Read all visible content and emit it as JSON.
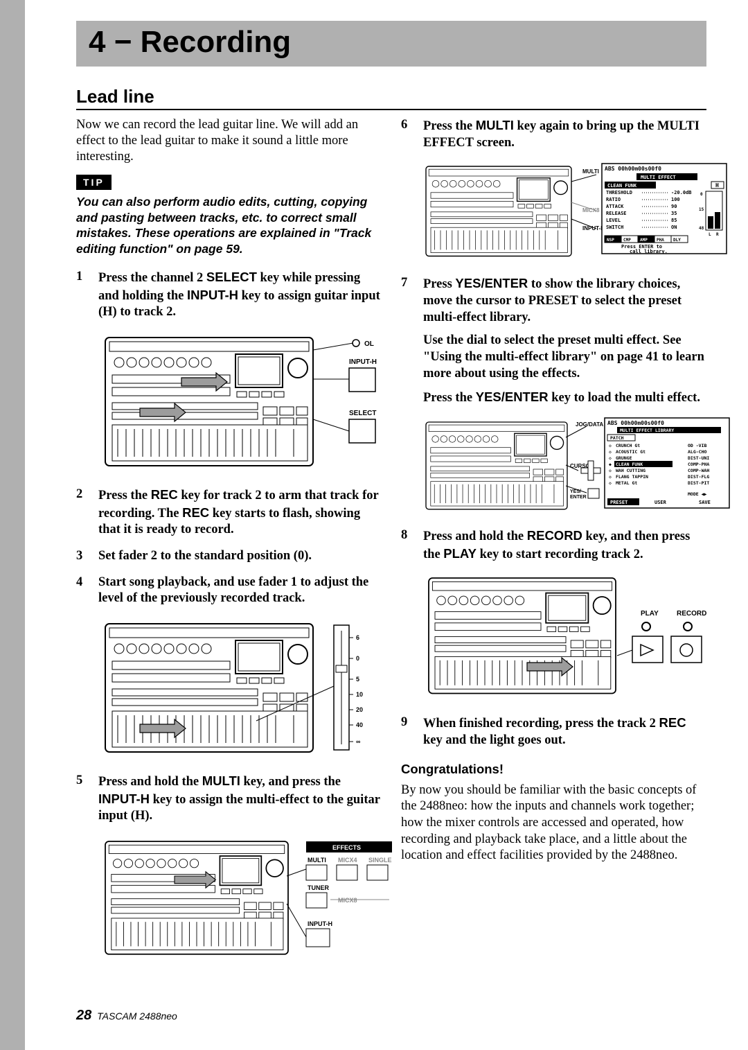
{
  "chapter": {
    "title": "4 − Recording"
  },
  "section": {
    "title": "Lead line"
  },
  "intro": "Now we can record the lead guitar line. We will add an effect to the lead guitar to make it sound a little more interesting.",
  "tip": {
    "label": "TIP",
    "body": "You can also perform audio edits, cutting, copying and pasting between tracks, etc. to correct small mistakes. These operations are explained in \"Track editing function\" on page 59."
  },
  "labels": {
    "ol": "OL",
    "input_h": "INPUT-H",
    "select": "SELECT",
    "effects": "EFFECTS",
    "multi": "MULTI",
    "micx4": "MICX4",
    "single": "SINGLE",
    "tuner": "TUNER",
    "micx8": "MICX8",
    "play": "PLAY",
    "record": "RECORD",
    "jog": "JOG/DATA",
    "cursor": "CURSOR",
    "yes_enter": "YES/\nENTER"
  },
  "fader_ticks": [
    "6",
    "0",
    "5",
    "10",
    "20",
    "40",
    "∞"
  ],
  "lcd1": {
    "timecode": "ABS 00h00m00s00f0",
    "title": "MULTI EFFECT",
    "patch": "CLEAN FUNK",
    "ch": "H",
    "rows": [
      [
        "THRESHOLD",
        "-20.0dB"
      ],
      [
        "RATIO",
        "100"
      ],
      [
        "ATTACK",
        "90"
      ],
      [
        "RELEASE",
        "35"
      ],
      [
        "LEVEL",
        "85"
      ],
      [
        "SWITCH",
        "ON"
      ]
    ],
    "tabs": [
      "NSP",
      "CMP",
      "AMP",
      "PHA",
      "DLY"
    ],
    "footer": "Press ENTER to\ncall library.",
    "meter_ticks": [
      "0",
      "15",
      "48"
    ],
    "meter_lr": [
      "L",
      "R"
    ]
  },
  "lcd2": {
    "timecode": "ABS 00h00m00s00f0",
    "title": "MULTI EFFECT LIBRARY",
    "patch": "PATCH",
    "list_left": [
      "CRUNCH Gt",
      "ACOUSTIC Gt",
      "GRUNGE",
      "CLEAN FUNK",
      "WAH CUTTING",
      "FLANG TAPPIN",
      "METAL Gt"
    ],
    "list_right": [
      "OD -VIB",
      "ALG-CHO",
      "DIST-UNI",
      "COMP-PHA",
      "COMP-WAH",
      "DIST-FLG",
      "DIST-PIT"
    ],
    "mode": "MODE ◀▶",
    "bottom": [
      "PRESET",
      "USER",
      "SAVE"
    ]
  },
  "steps_left": [
    {
      "parts": [
        {
          "t": "Press the channel 2 "
        },
        {
          "t": "SELECT",
          "kw": true
        },
        {
          "t": " key while pressing and holding the "
        },
        {
          "t": "INPUT-H",
          "kw": true
        },
        {
          "t": " key to assign guitar input (H) to track 2."
        }
      ],
      "figure": "fig1"
    },
    {
      "parts": [
        {
          "t": "Press the "
        },
        {
          "t": "REC",
          "kw": true
        },
        {
          "t": " key for track 2 to arm that track for recording. The "
        },
        {
          "t": "REC",
          "kw": true
        },
        {
          "t": " key starts to flash, showing that it is ready to record."
        }
      ]
    },
    {
      "parts": [
        {
          "t": "Set fader 2 to the standard position (0)."
        }
      ]
    },
    {
      "parts": [
        {
          "t": "Start song playback, and use fader 1 to adjust the level of the previously recorded track."
        }
      ],
      "figure": "fig2"
    },
    {
      "parts": [
        {
          "t": "Press and hold the "
        },
        {
          "t": "MULTI",
          "kw": true
        },
        {
          "t": " key, and press the "
        },
        {
          "t": "INPUT-H",
          "kw": true
        },
        {
          "t": " key to assign the multi-effect to the guitar input (H)."
        }
      ],
      "figure": "fig3"
    }
  ],
  "steps_right": [
    {
      "parts": [
        {
          "t": "Press the "
        },
        {
          "t": "MULTI",
          "kw": true
        },
        {
          "t": " key again to bring up the MULTI EFFECT screen."
        }
      ],
      "figure": "fig4"
    },
    {
      "parts": [
        {
          "t": "Press "
        },
        {
          "t": "YES/ENTER",
          "kw": true
        },
        {
          "t": " to show the library choices, move the cursor to PRESET to select the preset multi-effect library."
        }
      ],
      "subs": [
        [
          {
            "t": "Use the dial to select the preset multi effect. See \"Using the multi-effect library\" on page 41 to learn more about using the effects."
          }
        ],
        [
          {
            "t": "Press the "
          },
          {
            "t": "YES/ENTER",
            "kw": true
          },
          {
            "t": " key to load the multi effect."
          }
        ]
      ],
      "figure": "fig5"
    },
    {
      "parts": [
        {
          "t": "Press and hold the "
        },
        {
          "t": "RECORD",
          "kw": true
        },
        {
          "t": " key, and then press the "
        },
        {
          "t": "PLAY",
          "kw": true
        },
        {
          "t": " key to start recording track 2."
        }
      ],
      "figure": "fig6"
    },
    {
      "parts": [
        {
          "t": "When finished recording, press the track 2 "
        },
        {
          "t": "REC",
          "kw": true
        },
        {
          "t": " key and the light goes out."
        }
      ]
    }
  ],
  "congrats": {
    "heading": "Congratulations!",
    "body": "By now you should be familiar with the basic concepts of the 2488neo: how the inputs and channels work together; how the mixer controls are accessed and operated, how recording and playback take place, and a little about the location and effect facilities provided by the 2488neo."
  },
  "footer": {
    "page": "28",
    "model": "TASCAM  2488neo"
  },
  "colors": {
    "grey": "#b0b0b0",
    "black": "#000000",
    "white": "#ffffff",
    "arrow": "#9c9c9c"
  }
}
